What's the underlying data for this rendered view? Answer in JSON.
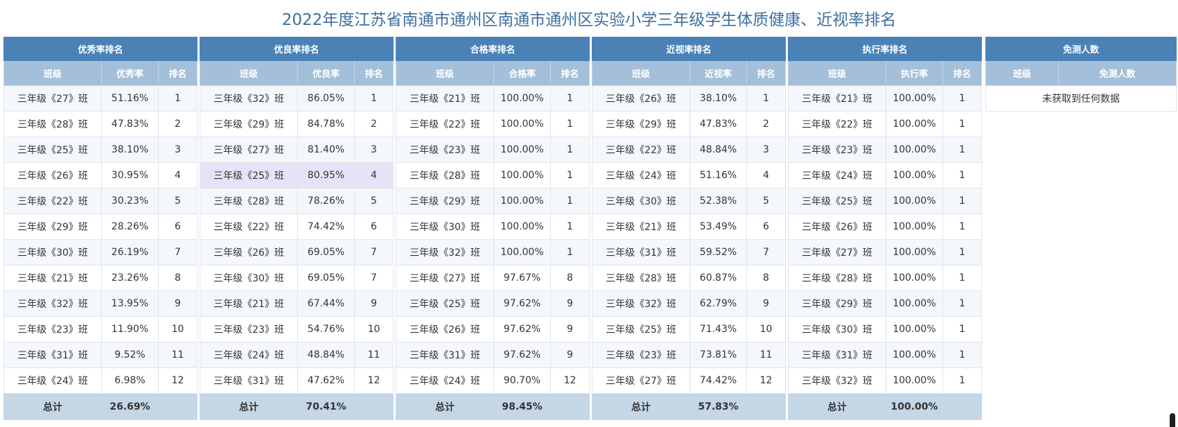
{
  "title": "2022年度江苏省南通市通州区南通市通州区实验小学三年级学生体质健康、近视率排名",
  "panels": [
    {
      "title": "优秀率排名",
      "col_class": "班级",
      "col_value": "优秀率",
      "col_rank": "排名",
      "total_label": "总计",
      "total_value": "26.69%",
      "rows": [
        {
          "cls": "三年级《27》班",
          "val": "51.16%",
          "rank": "1"
        },
        {
          "cls": "三年级《28》班",
          "val": "47.83%",
          "rank": "2"
        },
        {
          "cls": "三年级《25》班",
          "val": "38.10%",
          "rank": "3"
        },
        {
          "cls": "三年级《26》班",
          "val": "30.95%",
          "rank": "4"
        },
        {
          "cls": "三年级《22》班",
          "val": "30.23%",
          "rank": "5"
        },
        {
          "cls": "三年级《29》班",
          "val": "28.26%",
          "rank": "6"
        },
        {
          "cls": "三年级《30》班",
          "val": "26.19%",
          "rank": "7"
        },
        {
          "cls": "三年级《21》班",
          "val": "23.26%",
          "rank": "8"
        },
        {
          "cls": "三年级《32》班",
          "val": "13.95%",
          "rank": "9"
        },
        {
          "cls": "三年级《23》班",
          "val": "11.90%",
          "rank": "10"
        },
        {
          "cls": "三年级《31》班",
          "val": "9.52%",
          "rank": "11"
        },
        {
          "cls": "三年级《24》班",
          "val": "6.98%",
          "rank": "12"
        }
      ]
    },
    {
      "title": "优良率排名",
      "col_class": "班级",
      "col_value": "优良率",
      "col_rank": "排名",
      "total_label": "总计",
      "total_value": "70.41%",
      "rows": [
        {
          "cls": "三年级《32》班",
          "val": "86.05%",
          "rank": "1"
        },
        {
          "cls": "三年级《29》班",
          "val": "84.78%",
          "rank": "2"
        },
        {
          "cls": "三年级《27》班",
          "val": "81.40%",
          "rank": "3"
        },
        {
          "cls": "三年级《25》班",
          "val": "80.95%",
          "rank": "4"
        },
        {
          "cls": "三年级《28》班",
          "val": "78.26%",
          "rank": "5"
        },
        {
          "cls": "三年级《22》班",
          "val": "74.42%",
          "rank": "6"
        },
        {
          "cls": "三年级《26》班",
          "val": "69.05%",
          "rank": "7"
        },
        {
          "cls": "三年级《30》班",
          "val": "69.05%",
          "rank": "7"
        },
        {
          "cls": "三年级《21》班",
          "val": "67.44%",
          "rank": "9"
        },
        {
          "cls": "三年级《23》班",
          "val": "54.76%",
          "rank": "10"
        },
        {
          "cls": "三年级《24》班",
          "val": "48.84%",
          "rank": "11"
        },
        {
          "cls": "三年级《31》班",
          "val": "47.62%",
          "rank": "12"
        }
      ]
    },
    {
      "title": "合格率排名",
      "col_class": "班级",
      "col_value": "合格率",
      "col_rank": "排名",
      "total_label": "总计",
      "total_value": "98.45%",
      "rows": [
        {
          "cls": "三年级《21》班",
          "val": "100.00%",
          "rank": "1"
        },
        {
          "cls": "三年级《22》班",
          "val": "100.00%",
          "rank": "1"
        },
        {
          "cls": "三年级《23》班",
          "val": "100.00%",
          "rank": "1"
        },
        {
          "cls": "三年级《28》班",
          "val": "100.00%",
          "rank": "1"
        },
        {
          "cls": "三年级《29》班",
          "val": "100.00%",
          "rank": "1"
        },
        {
          "cls": "三年级《30》班",
          "val": "100.00%",
          "rank": "1"
        },
        {
          "cls": "三年级《32》班",
          "val": "100.00%",
          "rank": "1"
        },
        {
          "cls": "三年级《27》班",
          "val": "97.67%",
          "rank": "8"
        },
        {
          "cls": "三年级《25》班",
          "val": "97.62%",
          "rank": "9"
        },
        {
          "cls": "三年级《26》班",
          "val": "97.62%",
          "rank": "9"
        },
        {
          "cls": "三年级《31》班",
          "val": "97.62%",
          "rank": "9"
        },
        {
          "cls": "三年级《24》班",
          "val": "90.70%",
          "rank": "12"
        }
      ]
    },
    {
      "title": "近视率排名",
      "col_class": "班级",
      "col_value": "近视率",
      "col_rank": "排名",
      "total_label": "总计",
      "total_value": "57.83%",
      "rows": [
        {
          "cls": "三年级《26》班",
          "val": "38.10%",
          "rank": "1"
        },
        {
          "cls": "三年级《29》班",
          "val": "47.83%",
          "rank": "2"
        },
        {
          "cls": "三年级《22》班",
          "val": "48.84%",
          "rank": "3"
        },
        {
          "cls": "三年级《24》班",
          "val": "51.16%",
          "rank": "4"
        },
        {
          "cls": "三年级《30》班",
          "val": "52.38%",
          "rank": "5"
        },
        {
          "cls": "三年级《21》班",
          "val": "53.49%",
          "rank": "6"
        },
        {
          "cls": "三年级《31》班",
          "val": "59.52%",
          "rank": "7"
        },
        {
          "cls": "三年级《28》班",
          "val": "60.87%",
          "rank": "8"
        },
        {
          "cls": "三年级《32》班",
          "val": "62.79%",
          "rank": "9"
        },
        {
          "cls": "三年级《25》班",
          "val": "71.43%",
          "rank": "10"
        },
        {
          "cls": "三年级《23》班",
          "val": "73.81%",
          "rank": "11"
        },
        {
          "cls": "三年级《27》班",
          "val": "74.42%",
          "rank": "12"
        }
      ]
    },
    {
      "title": "执行率排名",
      "col_class": "班级",
      "col_value": "执行率",
      "col_rank": "排名",
      "total_label": "总计",
      "total_value": "100.00%",
      "rows": [
        {
          "cls": "三年级《21》班",
          "val": "100.00%",
          "rank": "1"
        },
        {
          "cls": "三年级《22》班",
          "val": "100.00%",
          "rank": "1"
        },
        {
          "cls": "三年级《23》班",
          "val": "100.00%",
          "rank": "1"
        },
        {
          "cls": "三年级《24》班",
          "val": "100.00%",
          "rank": "1"
        },
        {
          "cls": "三年级《25》班",
          "val": "100.00%",
          "rank": "1"
        },
        {
          "cls": "三年级《26》班",
          "val": "100.00%",
          "rank": "1"
        },
        {
          "cls": "三年级《27》班",
          "val": "100.00%",
          "rank": "1"
        },
        {
          "cls": "三年级《28》班",
          "val": "100.00%",
          "rank": "1"
        },
        {
          "cls": "三年级《29》班",
          "val": "100.00%",
          "rank": "1"
        },
        {
          "cls": "三年级《30》班",
          "val": "100.00%",
          "rank": "1"
        },
        {
          "cls": "三年级《31》班",
          "val": "100.00%",
          "rank": "1"
        },
        {
          "cls": "三年级《32》班",
          "val": "100.00%",
          "rank": "1"
        }
      ]
    }
  ],
  "exempt": {
    "title": "免测人数",
    "col_class": "班级",
    "col_value": "免测人数",
    "empty_text": "未获取到任何数据"
  }
}
